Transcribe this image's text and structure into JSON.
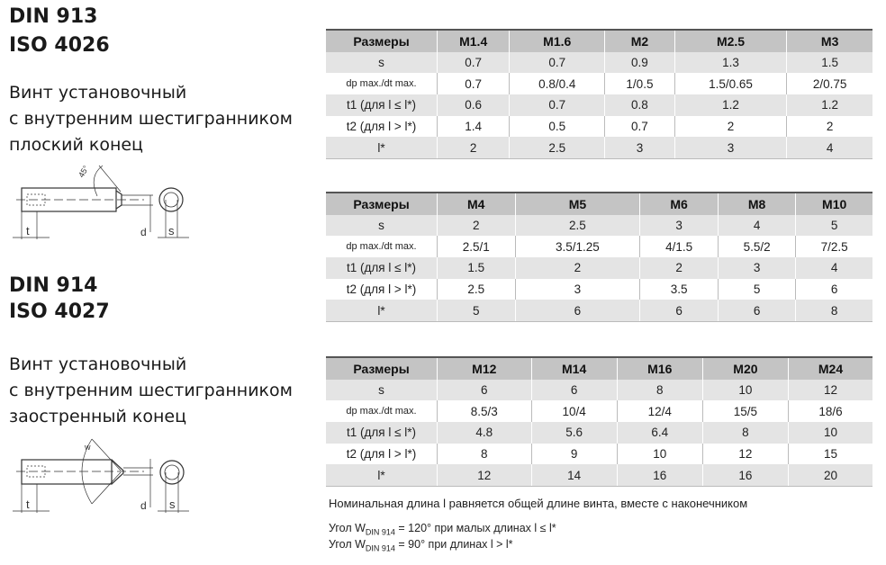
{
  "din913": {
    "standard1": "DIN 913",
    "standard2": "ISO 4026",
    "description": [
      "Винт установочный",
      "с внутренним шестигранником",
      "плоский конец"
    ],
    "drawing_labels": {
      "angle": "45°",
      "t": "t",
      "d": "d",
      "s": "s"
    }
  },
  "din914": {
    "standard1": "DIN 914",
    "standard2": "ISO 4027",
    "description": [
      "Винт установочный",
      "с внутренним шестигранником",
      "заостренный конец"
    ],
    "drawing_labels": {
      "angle": "w",
      "t": "t",
      "d": "d",
      "s": "s"
    }
  },
  "row_labels": [
    "Размеры",
    "s",
    "dp max./dt max.",
    "t1 (для l ≤ l*)",
    "t2 (для l > l*)",
    "l*"
  ],
  "tables": [
    {
      "sizes": [
        "M1.4",
        "M1.6",
        "M2",
        "M2.5",
        "M3"
      ],
      "rows": [
        [
          "0.7",
          "0.7",
          "0.9",
          "1.3",
          "1.5"
        ],
        [
          "0.7",
          "0.8/0.4",
          "1/0.5",
          "1.5/0.65",
          "2/0.75"
        ],
        [
          "0.6",
          "0.7",
          "0.8",
          "1.2",
          "1.2"
        ],
        [
          "1.4",
          "0.5",
          "0.7",
          "2",
          "2"
        ],
        [
          "2",
          "2.5",
          "3",
          "3",
          "4"
        ]
      ]
    },
    {
      "sizes": [
        "M4",
        "M5",
        "M6",
        "M8",
        "M10"
      ],
      "rows": [
        [
          "2",
          "2.5",
          "3",
          "4",
          "5"
        ],
        [
          "2.5/1",
          "3.5/1.25",
          "4/1.5",
          "5.5/2",
          "7/2.5"
        ],
        [
          "1.5",
          "2",
          "2",
          "3",
          "4"
        ],
        [
          "2.5",
          "3",
          "3.5",
          "5",
          "6"
        ],
        [
          "5",
          "6",
          "6",
          "6",
          "8"
        ]
      ]
    },
    {
      "sizes": [
        "M12",
        "M14",
        "M16",
        "M20",
        "M24"
      ],
      "rows": [
        [
          "6",
          "6",
          "8",
          "10",
          "12"
        ],
        [
          "8.5/3",
          "10/4",
          "12/4",
          "15/5",
          "18/6"
        ],
        [
          "4.8",
          "5.6",
          "6.4",
          "8",
          "10"
        ],
        [
          "8",
          "9",
          "10",
          "12",
          "15"
        ],
        [
          "12",
          "14",
          "16",
          "16",
          "20"
        ]
      ]
    }
  ],
  "notes": {
    "nominal": "Номинальная длина l равняется общей длине винта, вместе с наконечником",
    "angle1": {
      "prefix": "Угол W",
      "sub": "DIN 914",
      "suffix": " = 120° при малых длинах l ≤ l*"
    },
    "angle2": {
      "prefix": "Угол W",
      "sub": "DIN 914",
      "suffix": " = 90° при длинах l > l*"
    }
  }
}
